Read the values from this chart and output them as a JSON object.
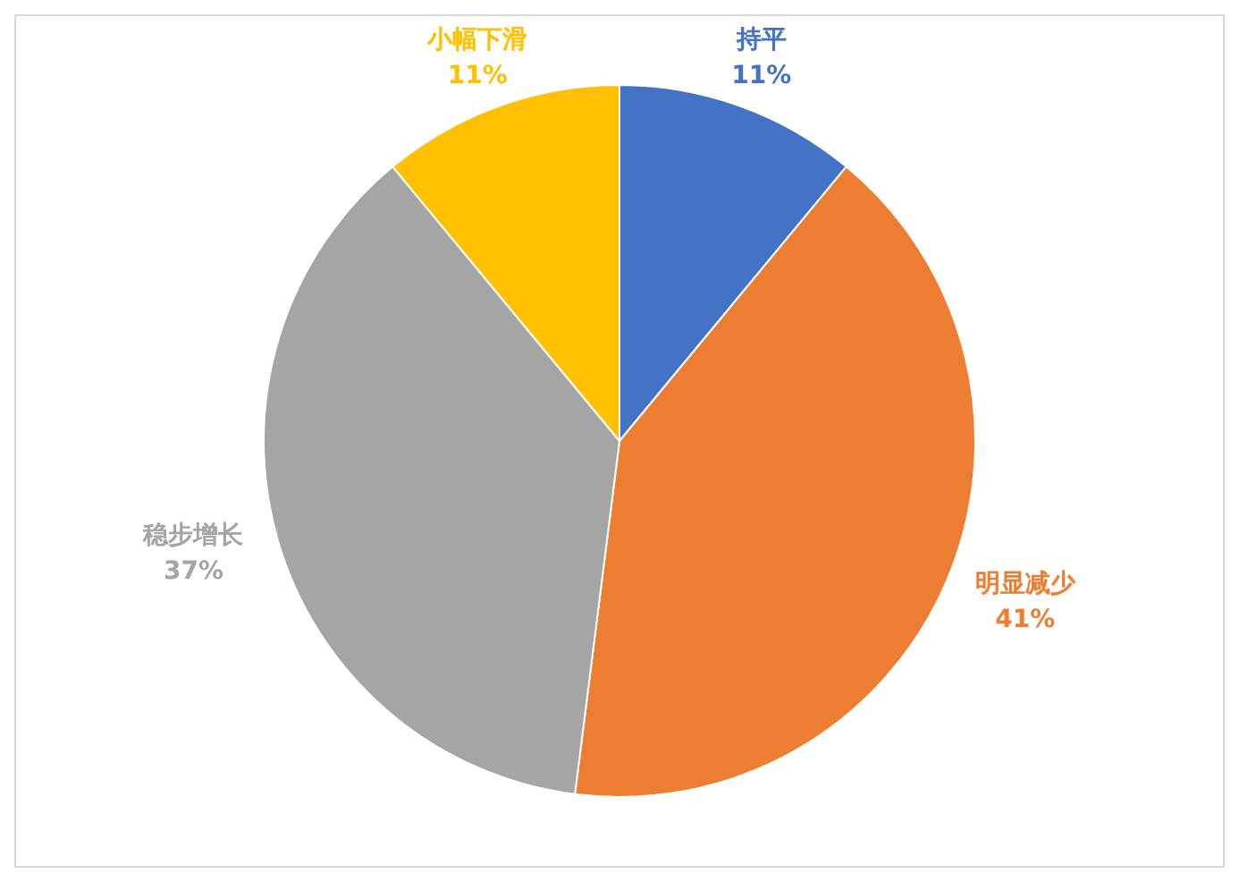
{
  "chart_data": {
    "type": "pie",
    "categories": [
      "持平",
      "明显减少",
      "稳步增长",
      "小幅下滑"
    ],
    "values": [
      11,
      41,
      37,
      11
    ],
    "value_labels": [
      "11%",
      "41%",
      "37%",
      "11%"
    ],
    "colors": [
      "#4472c4",
      "#ed7d31",
      "#a5a5a5",
      "#ffc000"
    ],
    "legend": false
  }
}
